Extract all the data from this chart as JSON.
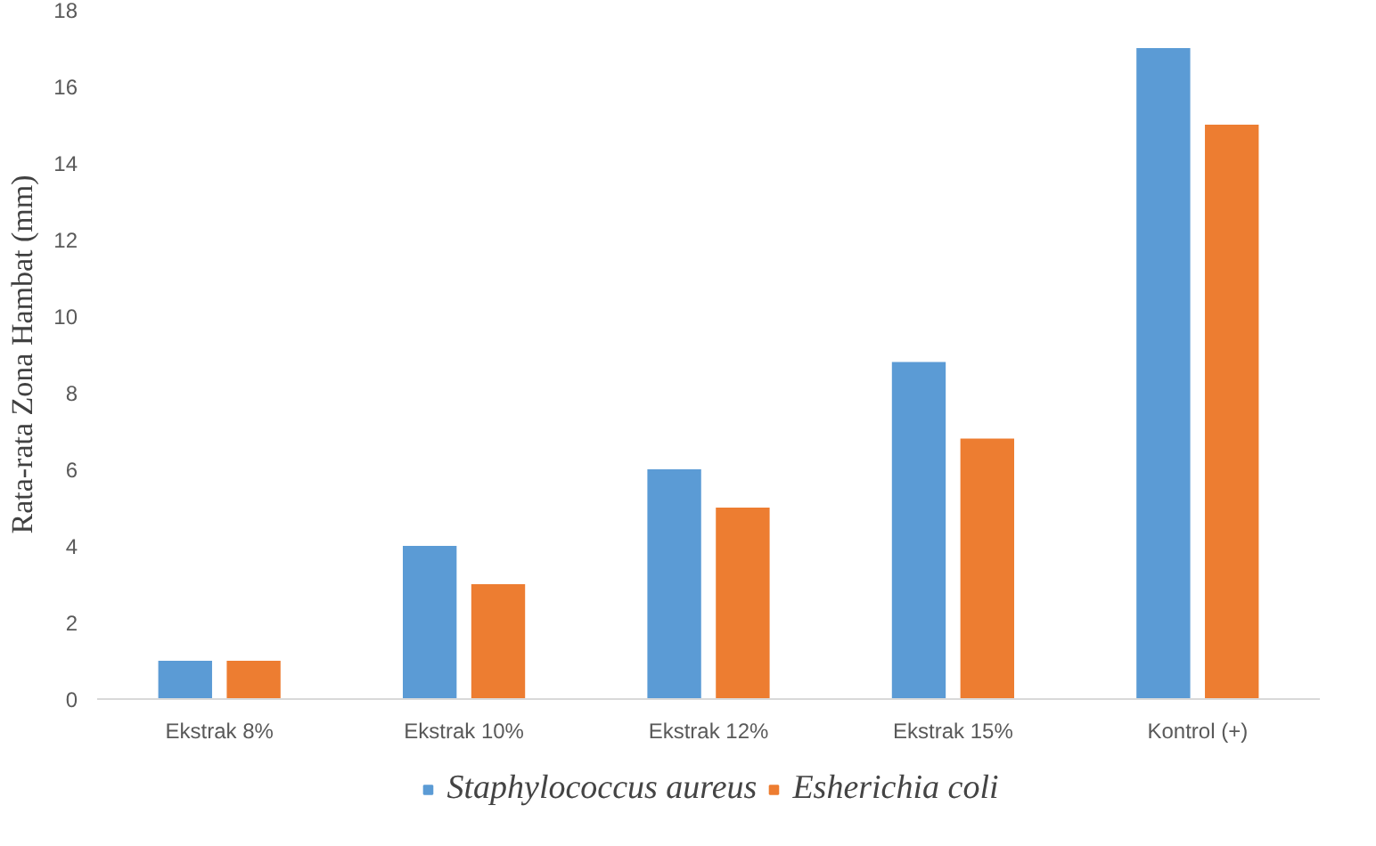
{
  "chart_data": {
    "type": "bar",
    "ylabel": "Rata-rata Zona Hambat (mm)",
    "categories": [
      "Ekstrak 8%",
      "Ekstrak 10%",
      "Ekstrak 12%",
      "Ekstrak 15%",
      "Kontrol (+)"
    ],
    "series": [
      {
        "name": "Staphylococcus aureus",
        "color": "#5b9bd5",
        "values": [
          1,
          4,
          6,
          8.8,
          17
        ]
      },
      {
        "name": "Esherichia coli",
        "color": "#ed7d31",
        "values": [
          1,
          3,
          5,
          6.8,
          15
        ]
      }
    ],
    "ylim": [
      0,
      18
    ],
    "yticks": [
      0,
      2,
      4,
      6,
      8,
      10,
      12,
      14,
      16,
      18
    ],
    "grid": false,
    "legend": "bottom"
  }
}
